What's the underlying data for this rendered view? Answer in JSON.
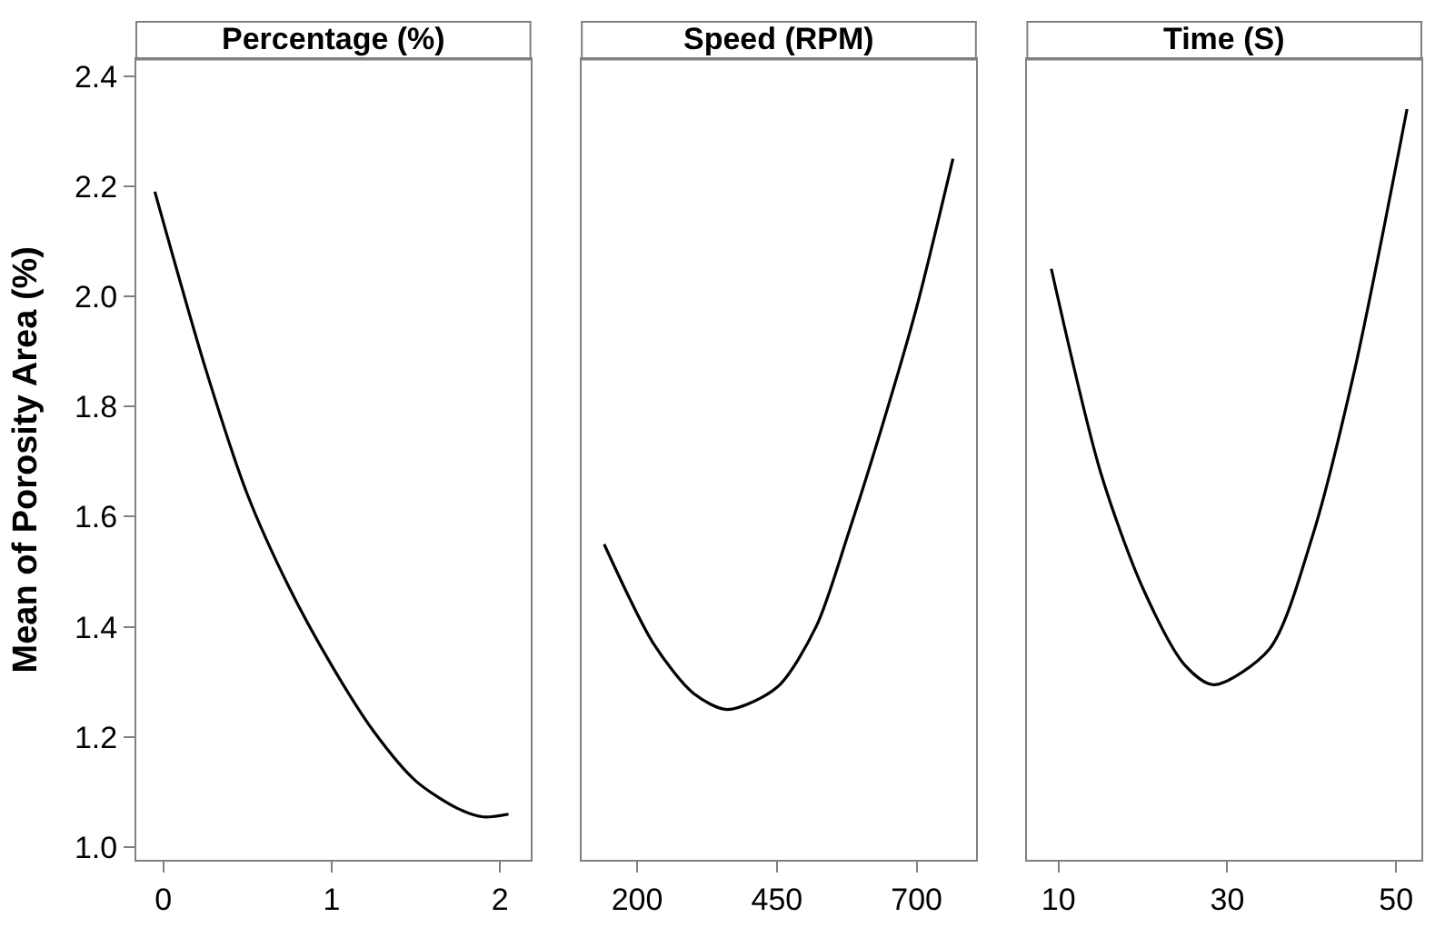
{
  "chart_data": [
    {
      "type": "line",
      "title": "Percentage (%)",
      "ylabel": "Mean of Porosity Area (%)",
      "x": [
        -0.05,
        0.25,
        0.5,
        0.75,
        1.0,
        1.25,
        1.5,
        1.75,
        1.9,
        2.05
      ],
      "series": [
        {
          "color": "#000000",
          "values": [
            2.19,
            1.87,
            1.64,
            1.47,
            1.33,
            1.21,
            1.12,
            1.07,
            1.055,
            1.06
          ]
        }
      ],
      "xlim": [
        -0.16,
        2.18
      ],
      "xticks": [
        0,
        1,
        2
      ],
      "ylim": [
        0.977,
        2.43
      ],
      "yticks": [
        {
          "value": 1,
          "label": "1.0"
        },
        1.2,
        1.4,
        1.6,
        1.8,
        {
          "value": 2,
          "label": "2.0"
        },
        2.2,
        2.4
      ],
      "marker": "none",
      "line_style": "solid"
    },
    {
      "type": "line",
      "title": "Speed (RPM)",
      "x": [
        141,
        229,
        300,
        361,
        450,
        520,
        578,
        640,
        700,
        765
      ],
      "series": [
        {
          "color": "#000000",
          "values": [
            1.55,
            1.37,
            1.28,
            1.25,
            1.29,
            1.4,
            1.57,
            1.77,
            1.98,
            2.25
          ]
        }
      ],
      "xlim": [
        101,
        806
      ],
      "xticks": [
        200,
        450,
        700
      ],
      "ylim": [
        0.977,
        2.43
      ],
      "tick_labels": "x",
      "marker": "none",
      "line_style": "solid"
    },
    {
      "type": "line",
      "title": "Time (S)",
      "x": [
        9.15,
        15,
        20,
        25,
        28.4,
        35,
        40,
        45,
        51.3
      ],
      "series": [
        {
          "color": "#000000",
          "values": [
            2.05,
            1.68,
            1.47,
            1.33,
            1.295,
            1.36,
            1.56,
            1.86,
            2.34
          ]
        }
      ],
      "xlim": [
        6.3,
        53
      ],
      "xticks": [
        10,
        30,
        50
      ],
      "ylim": [
        0.977,
        2.43
      ],
      "tick_labels": "x",
      "marker": "none",
      "line_style": "solid"
    }
  ]
}
